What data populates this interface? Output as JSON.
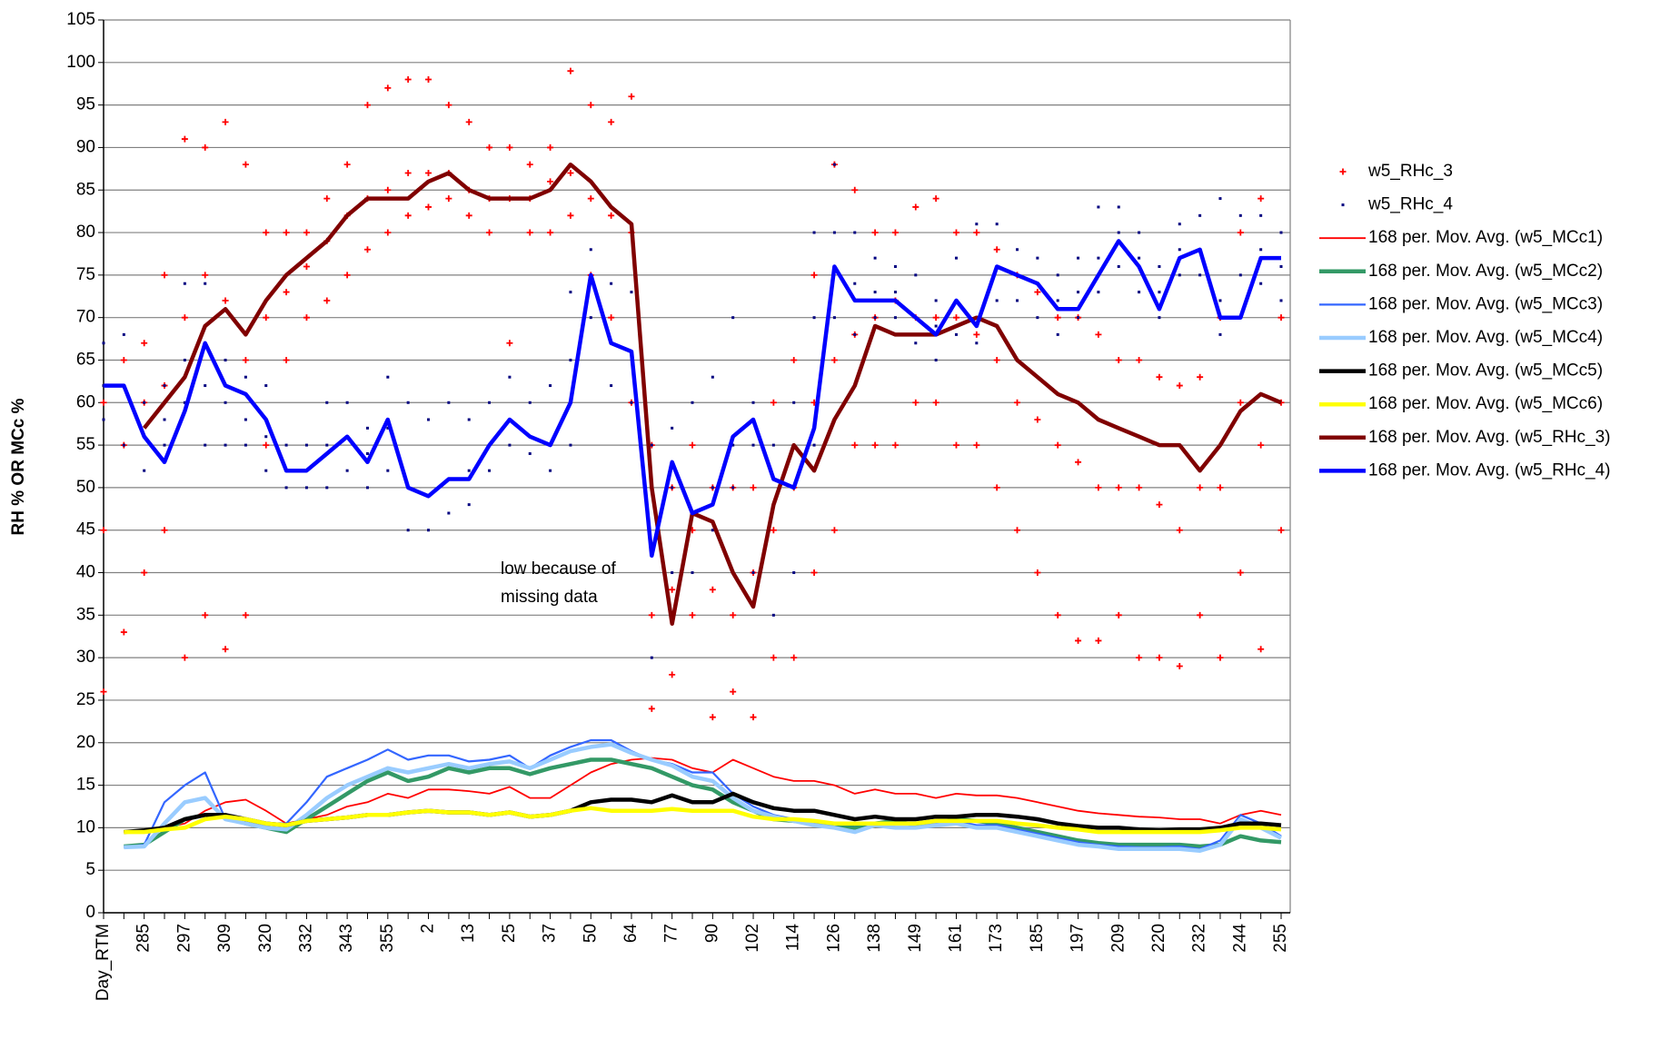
{
  "chart_data": {
    "type": "line",
    "y_label": "RH % OR MCc %",
    "annotation": [
      "low because of",
      "missing data"
    ],
    "ylim": [
      0,
      105
    ],
    "yticks": [
      0,
      5,
      10,
      15,
      20,
      25,
      30,
      35,
      40,
      45,
      50,
      55,
      60,
      65,
      70,
      75,
      80,
      85,
      90,
      95,
      100,
      105
    ],
    "grid": true,
    "categories": [
      "Day_RTM",
      null,
      "285",
      null,
      "297",
      null,
      "309",
      null,
      "320",
      null,
      "332",
      null,
      "343",
      null,
      "355",
      null,
      "2",
      null,
      "13",
      null,
      "25",
      null,
      "37",
      null,
      "50",
      null,
      "64",
      null,
      "77",
      null,
      "90",
      null,
      "102",
      null,
      "114",
      null,
      "126",
      null,
      "138",
      null,
      "149",
      null,
      "161",
      null,
      "173",
      null,
      "185",
      null,
      "197",
      null,
      "209",
      null,
      "220",
      null,
      "232",
      null,
      "244",
      null,
      "255"
    ],
    "series": [
      {
        "name": "w5_RHc_3",
        "type": "scatter",
        "color": "#ff0000",
        "values": [
          [
            26,
            45,
            60
          ],
          [
            33,
            55,
            65
          ],
          [
            40,
            60,
            67
          ],
          [
            45,
            62,
            75
          ],
          [
            30,
            70,
            91
          ],
          [
            35,
            75,
            90
          ],
          [
            31,
            72,
            93
          ],
          [
            35,
            65,
            88
          ],
          [
            55,
            70,
            80
          ],
          [
            65,
            73,
            80
          ],
          [
            70,
            76,
            80
          ],
          [
            72,
            79,
            84
          ],
          [
            75,
            82,
            88
          ],
          [
            78,
            84,
            95
          ],
          [
            80,
            85,
            97
          ],
          [
            82,
            87,
            98
          ],
          [
            83,
            87,
            98
          ],
          [
            84,
            87,
            95
          ],
          [
            82,
            85,
            93
          ],
          [
            80,
            84,
            90
          ],
          [
            67,
            84,
            90
          ],
          [
            80,
            84,
            88
          ],
          [
            80,
            86,
            90
          ],
          [
            82,
            87,
            99
          ],
          [
            75,
            84,
            95
          ],
          [
            70,
            82,
            93
          ],
          [
            60,
            80,
            96
          ],
          [
            24,
            35,
            55
          ],
          [
            28,
            38,
            50
          ],
          [
            35,
            45,
            55
          ],
          [
            23,
            38,
            50
          ],
          [
            26,
            35,
            50
          ],
          [
            23,
            40,
            50
          ],
          [
            30,
            45,
            60
          ],
          [
            30,
            50,
            65
          ],
          [
            40,
            60,
            75
          ],
          [
            45,
            65,
            88
          ],
          [
            55,
            68,
            85
          ],
          [
            55,
            70,
            80
          ],
          [
            55,
            72,
            80
          ],
          [
            60,
            70,
            83
          ],
          [
            60,
            70,
            84
          ],
          [
            55,
            70,
            80
          ],
          [
            55,
            68,
            80
          ],
          [
            50,
            65,
            78
          ],
          [
            45,
            60,
            75
          ],
          [
            40,
            58,
            73
          ],
          [
            35,
            55,
            70
          ],
          [
            32,
            53,
            70
          ],
          [
            32,
            50,
            68
          ],
          [
            35,
            50,
            65
          ],
          [
            30,
            50,
            65
          ],
          [
            30,
            48,
            63
          ],
          [
            29,
            45,
            62
          ],
          [
            35,
            50,
            63
          ],
          [
            30,
            50,
            70
          ],
          [
            40,
            60,
            80
          ],
          [
            31,
            55,
            84
          ],
          [
            45,
            60,
            70
          ]
        ]
      },
      {
        "name": "w5_RHc_4",
        "type": "scatter",
        "color": "#000080",
        "values": [
          [
            58,
            62,
            67
          ],
          [
            55,
            62,
            68
          ],
          [
            52,
            56,
            60
          ],
          [
            55,
            58,
            62
          ],
          [
            60,
            65,
            74
          ],
          [
            55,
            62,
            74
          ],
          [
            55,
            60,
            65
          ],
          [
            55,
            58,
            63
          ],
          [
            52,
            56,
            62
          ],
          [
            50,
            52,
            55
          ],
          [
            50,
            52,
            55
          ],
          [
            50,
            55,
            60
          ],
          [
            52,
            56,
            60
          ],
          [
            50,
            54,
            57
          ],
          [
            52,
            57,
            63
          ],
          [
            45,
            50,
            60
          ],
          [
            45,
            49,
            58
          ],
          [
            47,
            51,
            60
          ],
          [
            48,
            52,
            58
          ],
          [
            52,
            55,
            60
          ],
          [
            55,
            58,
            63
          ],
          [
            54,
            56,
            60
          ],
          [
            52,
            55,
            62
          ],
          [
            55,
            65,
            73
          ],
          [
            70,
            78,
            86
          ],
          [
            62,
            67,
            74
          ],
          [
            60,
            66,
            73
          ],
          [
            30,
            42,
            55
          ],
          [
            40,
            50,
            57
          ],
          [
            40,
            47,
            60
          ],
          [
            45,
            50,
            63
          ],
          [
            50,
            55,
            70
          ],
          [
            40,
            55,
            60
          ],
          [
            35,
            48,
            55
          ],
          [
            40,
            50,
            60
          ],
          [
            55,
            70,
            80
          ],
          [
            70,
            80,
            88
          ],
          [
            68,
            74,
            80
          ],
          [
            70,
            73,
            77
          ],
          [
            70,
            73,
            76
          ],
          [
            67,
            70,
            75
          ],
          [
            65,
            69,
            72
          ],
          [
            68,
            72,
            77
          ],
          [
            67,
            70,
            81
          ],
          [
            72,
            76,
            81
          ],
          [
            72,
            75,
            78
          ],
          [
            70,
            74,
            77
          ],
          [
            68,
            72,
            75
          ],
          [
            70,
            73,
            77
          ],
          [
            73,
            77,
            83
          ],
          [
            76,
            80,
            83
          ],
          [
            73,
            77,
            80
          ],
          [
            70,
            73,
            76
          ],
          [
            75,
            78,
            81
          ],
          [
            75,
            78,
            82
          ],
          [
            68,
            72,
            84
          ],
          [
            70,
            75,
            82
          ],
          [
            74,
            78,
            82
          ],
          [
            72,
            76,
            80
          ]
        ]
      },
      {
        "name": "168 per. Mov. Avg. (w5_MCc1)",
        "type": "line",
        "color": "#ff0000",
        "values": [
          null,
          9.5,
          9.6,
          10,
          10.5,
          12,
          13,
          13.3,
          12,
          10.5,
          11,
          11.5,
          12.5,
          13,
          14,
          13.5,
          14.5,
          14.5,
          14.3,
          14,
          14.8,
          13.5,
          13.5,
          15,
          16.5,
          17.5,
          18,
          18.2,
          18,
          17,
          16.5,
          18,
          17,
          16,
          15.5,
          15.5,
          15,
          14,
          14.5,
          14,
          14,
          13.5,
          14,
          13.8,
          13.8,
          13.5,
          13,
          12.5,
          12,
          11.7,
          11.5,
          11.3,
          11.2,
          11,
          11,
          10.5,
          11.5,
          12,
          11.5
        ]
      },
      {
        "name": "168 per. Mov. Avg. (w5_MCc2)",
        "type": "line",
        "color": "#339966",
        "values": [
          null,
          7.8,
          8,
          9.5,
          11,
          11.5,
          11.5,
          10.5,
          10,
          9.5,
          11,
          12.5,
          14,
          15.5,
          16.5,
          15.5,
          16,
          17,
          16.5,
          17,
          17,
          16.3,
          17,
          17.5,
          18,
          18,
          17.5,
          17,
          16,
          15,
          14.5,
          13,
          12,
          11,
          10.8,
          10.5,
          10.3,
          10,
          10.5,
          10.8,
          10.3,
          10.5,
          11,
          10.8,
          10.5,
          10,
          9.5,
          9,
          8.5,
          8.2,
          8,
          8,
          8,
          8,
          7.8,
          8,
          9,
          8.5,
          8.3
        ]
      },
      {
        "name": "168 per. Mov. Avg. (w5_MCc3)",
        "type": "line",
        "color": "#3366ff",
        "values": [
          null,
          7.7,
          8,
          13,
          15,
          16.5,
          11,
          11,
          10.5,
          10.5,
          13,
          16,
          17,
          18,
          19.2,
          18,
          18.5,
          18.5,
          17.8,
          18,
          18.5,
          17,
          18.5,
          19.5,
          20.3,
          20.3,
          19,
          18,
          17.5,
          16.5,
          16.5,
          14,
          12.5,
          11.5,
          11,
          10.5,
          10,
          9.5,
          10.5,
          10,
          10,
          10.5,
          10.8,
          10.3,
          10.3,
          9.8,
          9.3,
          8.8,
          8.3,
          8,
          7.8,
          7.7,
          7.7,
          7.8,
          7.5,
          8.5,
          11.5,
          10.5,
          9
        ]
      },
      {
        "name": "168 per. Mov. Avg. (w5_MCc4)",
        "type": "line",
        "color": "#99ccff",
        "values": [
          null,
          7.7,
          7.8,
          10.5,
          13,
          13.5,
          11,
          10.5,
          10,
          9.8,
          11.5,
          13.5,
          15,
          16,
          17,
          16.5,
          17,
          17.5,
          17,
          17.5,
          17.8,
          17,
          18,
          19,
          19.5,
          19.8,
          18.8,
          18,
          17.3,
          16,
          15.5,
          13.5,
          12,
          11.3,
          10.8,
          10.3,
          10,
          9.5,
          10.3,
          10,
          10,
          10.3,
          10.5,
          10,
          10,
          9.5,
          9,
          8.5,
          8,
          7.8,
          7.5,
          7.5,
          7.5,
          7.5,
          7.3,
          8,
          11,
          10,
          8.8
        ]
      },
      {
        "name": "168 per. Mov. Avg. (w5_MCc5)",
        "type": "line",
        "color": "#000000",
        "values": [
          null,
          9.5,
          9.7,
          10,
          11,
          11.5,
          11.5,
          11,
          10.5,
          10.3,
          10.8,
          11,
          11.2,
          11.5,
          11.5,
          11.8,
          12,
          11.8,
          11.8,
          11.5,
          11.8,
          11.3,
          11.5,
          12,
          13,
          13.3,
          13.3,
          13,
          13.8,
          13,
          13,
          14,
          13,
          12.3,
          12,
          12,
          11.5,
          11,
          11.3,
          11,
          11,
          11.3,
          11.3,
          11.5,
          11.5,
          11.3,
          11,
          10.5,
          10.2,
          10,
          10,
          9.8,
          9.7,
          9.8,
          9.8,
          10,
          10.5,
          10.5,
          10.3
        ]
      },
      {
        "name": "168 per. Mov. Avg. (w5_MCc6)",
        "type": "line",
        "color": "#ffff00",
        "values": [
          null,
          9.5,
          9.5,
          9.8,
          10,
          11,
          11.3,
          11,
          10.5,
          10.3,
          10.8,
          11,
          11.2,
          11.5,
          11.5,
          11.8,
          12,
          11.8,
          11.8,
          11.5,
          11.8,
          11.3,
          11.5,
          12,
          12.3,
          12,
          12,
          12,
          12.2,
          12,
          12,
          12,
          11.3,
          11,
          11,
          10.8,
          10.5,
          10.5,
          10.5,
          10.5,
          10.5,
          10.8,
          10.8,
          10.8,
          10.8,
          10.5,
          10.3,
          10,
          9.8,
          9.5,
          9.5,
          9.5,
          9.5,
          9.5,
          9.5,
          9.7,
          10,
          10,
          9.8
        ]
      },
      {
        "name": "168 per. Mov. Avg. (w5_RHc_3)",
        "type": "line",
        "color": "#800000",
        "values": [
          null,
          null,
          57,
          60,
          63,
          69,
          71,
          68,
          72,
          75,
          77,
          79,
          82,
          84,
          84,
          84,
          86,
          87,
          85,
          84,
          84,
          84,
          85,
          88,
          86,
          83,
          81,
          50,
          34,
          47,
          46,
          40,
          36,
          48,
          55,
          52,
          58,
          62,
          69,
          68,
          68,
          68,
          69,
          70,
          69,
          65,
          63,
          61,
          60,
          58,
          57,
          56,
          55,
          55,
          52,
          55,
          59,
          61,
          60
        ]
      },
      {
        "name": "168 per. Mov. Avg. (w5_RHc_4)",
        "type": "line",
        "color": "#0000ff",
        "values": [
          62,
          62,
          56,
          53,
          59,
          67,
          62,
          61,
          58,
          52,
          52,
          54,
          56,
          53,
          58,
          50,
          49,
          51,
          51,
          55,
          58,
          56,
          55,
          60,
          75,
          67,
          66,
          42,
          53,
          47,
          48,
          56,
          58,
          51,
          50,
          57,
          76,
          72,
          72,
          72,
          70,
          68,
          72,
          69,
          76,
          75,
          74,
          71,
          71,
          75,
          79,
          76,
          71,
          77,
          78,
          70,
          70,
          77,
          77
        ]
      }
    ]
  }
}
